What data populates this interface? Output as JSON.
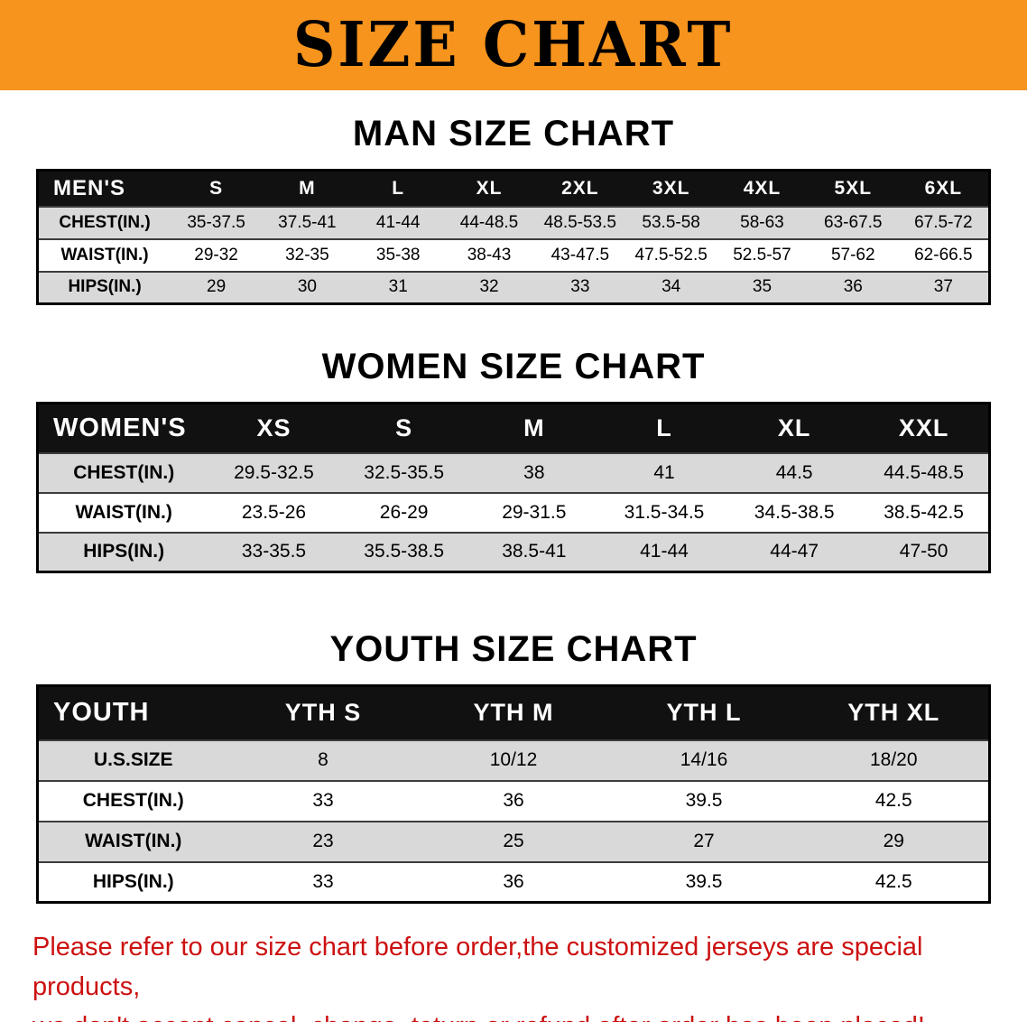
{
  "banner": {
    "title": "SIZE CHART"
  },
  "colors": {
    "banner-bg": "#F7941D",
    "table-header-bg": "#111111",
    "row-alt-bg": "#D9D9D9",
    "disclaimer-red": "#CC1111"
  },
  "sections": [
    {
      "id": "men",
      "heading": "MAN SIZE CHART",
      "table": {
        "header": [
          "MEN'S",
          "S",
          "M",
          "L",
          "XL",
          "2XL",
          "3XL",
          "4XL",
          "5XL",
          "6XL"
        ],
        "rows": [
          [
            "CHEST(IN.)",
            "35-37.5",
            "37.5-41",
            "41-44",
            "44-48.5",
            "48.5-53.5",
            "53.5-58",
            "58-63",
            "63-67.5",
            "67.5-72"
          ],
          [
            "WAIST(IN.)",
            "29-32",
            "32-35",
            "35-38",
            "38-43",
            "43-47.5",
            "47.5-52.5",
            "52.5-57",
            "57-62",
            "62-66.5"
          ],
          [
            "HIPS(IN.)",
            "29",
            "30",
            "31",
            "32",
            "33",
            "34",
            "35",
            "36",
            "37"
          ]
        ]
      }
    },
    {
      "id": "women",
      "heading": "WOMEN SIZE CHART",
      "table": {
        "header": [
          "WOMEN'S",
          "XS",
          "S",
          "M",
          "L",
          "XL",
          "XXL"
        ],
        "rows": [
          [
            "CHEST(IN.)",
            "29.5-32.5",
            "32.5-35.5",
            "38",
            "41",
            "44.5",
            "44.5-48.5"
          ],
          [
            "WAIST(IN.)",
            "23.5-26",
            "26-29",
            "29-31.5",
            "31.5-34.5",
            "34.5-38.5",
            "38.5-42.5"
          ],
          [
            "HIPS(IN.)",
            "33-35.5",
            "35.5-38.5",
            "38.5-41",
            "41-44",
            "44-47",
            "47-50"
          ]
        ]
      }
    },
    {
      "id": "youth",
      "heading": "YOUTH SIZE CHART",
      "table": {
        "header": [
          "YOUTH",
          "YTH S",
          "YTH M",
          "YTH L",
          "YTH XL"
        ],
        "rows": [
          [
            "U.S.SIZE",
            "8",
            "10/12",
            "14/16",
            "18/20"
          ],
          [
            "CHEST(IN.)",
            "33",
            "36",
            "39.5",
            "42.5"
          ],
          [
            "WAIST(IN.)",
            "23",
            "25",
            "27",
            "29"
          ],
          [
            "HIPS(IN.)",
            "33",
            "36",
            "39.5",
            "42.5"
          ]
        ]
      }
    }
  ],
  "disclaimer": {
    "line1": "Please refer to our size chart before order,the customized jerseys are special products,",
    "line2": "we don't accept cancel, change, teturn or refund after order has been placed!"
  }
}
